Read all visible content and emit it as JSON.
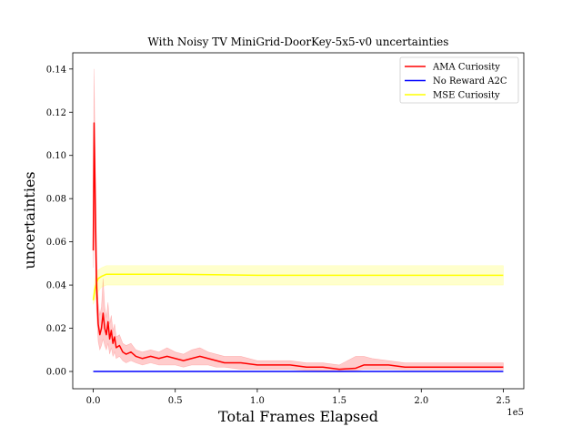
{
  "chart_data": {
    "type": "line",
    "title": "With Noisy TV MiniGrid-DoorKey-5x5-v0 uncertainties",
    "xlabel": "Total Frames Elapsed",
    "ylabel": "uncertainties",
    "x_multiplier_label": "1e5",
    "xlim": [
      -12500,
      262500
    ],
    "ylim": [
      -0.008,
      0.1475
    ],
    "x_ticks": [
      0,
      0.5,
      1.0,
      1.5,
      2.0,
      2.5
    ],
    "x_tick_labels": [
      "0.0",
      "0.5",
      "1.0",
      "1.5",
      "2.0",
      "2.5"
    ],
    "y_ticks": [
      0.0,
      0.02,
      0.04,
      0.06,
      0.08,
      0.1,
      0.12,
      0.14
    ],
    "y_tick_labels": [
      "0.00",
      "0.02",
      "0.04",
      "0.06",
      "0.08",
      "0.10",
      "0.12",
      "0.14"
    ],
    "grid": false,
    "legend_position": "top-right",
    "series": [
      {
        "name": "AMA Curiosity",
        "color": "#ff0000",
        "band_color": "#ff0000",
        "band_opacity": 0.2,
        "x": [
          0,
          500,
          1000,
          2000,
          3000,
          4000,
          5000,
          6000,
          7000,
          8000,
          9000,
          10000,
          11000,
          12000,
          13000,
          14000,
          16000,
          18000,
          20000,
          23000,
          26000,
          30000,
          35000,
          40000,
          45000,
          50000,
          55000,
          60000,
          65000,
          70000,
          75000,
          80000,
          90000,
          100000,
          110000,
          120000,
          130000,
          140000,
          150000,
          160000,
          165000,
          170000,
          180000,
          190000,
          200000,
          210000,
          220000,
          230000,
          240000,
          250000
        ],
        "y": [
          0.056,
          0.115,
          0.09,
          0.04,
          0.022,
          0.017,
          0.02,
          0.027,
          0.02,
          0.017,
          0.023,
          0.015,
          0.019,
          0.013,
          0.016,
          0.011,
          0.012,
          0.009,
          0.008,
          0.009,
          0.007,
          0.006,
          0.007,
          0.006,
          0.007,
          0.006,
          0.005,
          0.006,
          0.007,
          0.006,
          0.005,
          0.004,
          0.004,
          0.003,
          0.003,
          0.003,
          0.002,
          0.002,
          0.001,
          0.0015,
          0.003,
          0.003,
          0.003,
          0.002,
          0.002,
          0.002,
          0.002,
          0.002,
          0.002,
          0.002
        ],
        "lower": [
          0.048,
          0.09,
          0.06,
          0.028,
          0.014,
          0.01,
          0.012,
          0.015,
          0.012,
          0.01,
          0.013,
          0.008,
          0.011,
          0.007,
          0.009,
          0.006,
          0.007,
          0.005,
          0.004,
          0.005,
          0.004,
          0.003,
          0.004,
          0.003,
          0.003,
          0.003,
          0.002,
          0.003,
          0.003,
          0.003,
          0.002,
          0.002,
          0.001,
          0.001,
          0.001,
          0.001,
          0.0005,
          0.0003,
          0.0003,
          0.0005,
          0.001,
          0.001,
          0.001,
          0.0008,
          0.0008,
          0.0008,
          0.0008,
          0.0008,
          0.0008,
          0.0008
        ],
        "upper": [
          0.062,
          0.14,
          0.11,
          0.055,
          0.032,
          0.026,
          0.03,
          0.043,
          0.03,
          0.025,
          0.032,
          0.022,
          0.026,
          0.019,
          0.022,
          0.016,
          0.017,
          0.013,
          0.012,
          0.013,
          0.01,
          0.009,
          0.01,
          0.009,
          0.011,
          0.009,
          0.008,
          0.01,
          0.011,
          0.009,
          0.008,
          0.007,
          0.007,
          0.005,
          0.005,
          0.005,
          0.004,
          0.004,
          0.003,
          0.007,
          0.007,
          0.006,
          0.005,
          0.004,
          0.004,
          0.004,
          0.004,
          0.004,
          0.004,
          0.004
        ]
      },
      {
        "name": "No Reward A2C",
        "color": "#0000ff",
        "x": [
          0,
          250000
        ],
        "y": [
          0.0,
          0.0
        ]
      },
      {
        "name": "MSE Curiosity",
        "color": "#ffff00",
        "band_color": "#ffff00",
        "band_opacity": 0.2,
        "x": [
          0,
          1000,
          2000,
          3000,
          5000,
          8000,
          12000,
          20000,
          50000,
          100000,
          150000,
          200000,
          250000
        ],
        "y": [
          0.033,
          0.038,
          0.041,
          0.043,
          0.044,
          0.045,
          0.045,
          0.045,
          0.045,
          0.0445,
          0.0445,
          0.0445,
          0.0445
        ],
        "lower": [
          0.031,
          0.033,
          0.035,
          0.037,
          0.039,
          0.04,
          0.04,
          0.04,
          0.04,
          0.04,
          0.04,
          0.04,
          0.04
        ],
        "upper": [
          0.035,
          0.043,
          0.046,
          0.047,
          0.048,
          0.049,
          0.049,
          0.049,
          0.049,
          0.049,
          0.049,
          0.049,
          0.049
        ]
      }
    ]
  }
}
